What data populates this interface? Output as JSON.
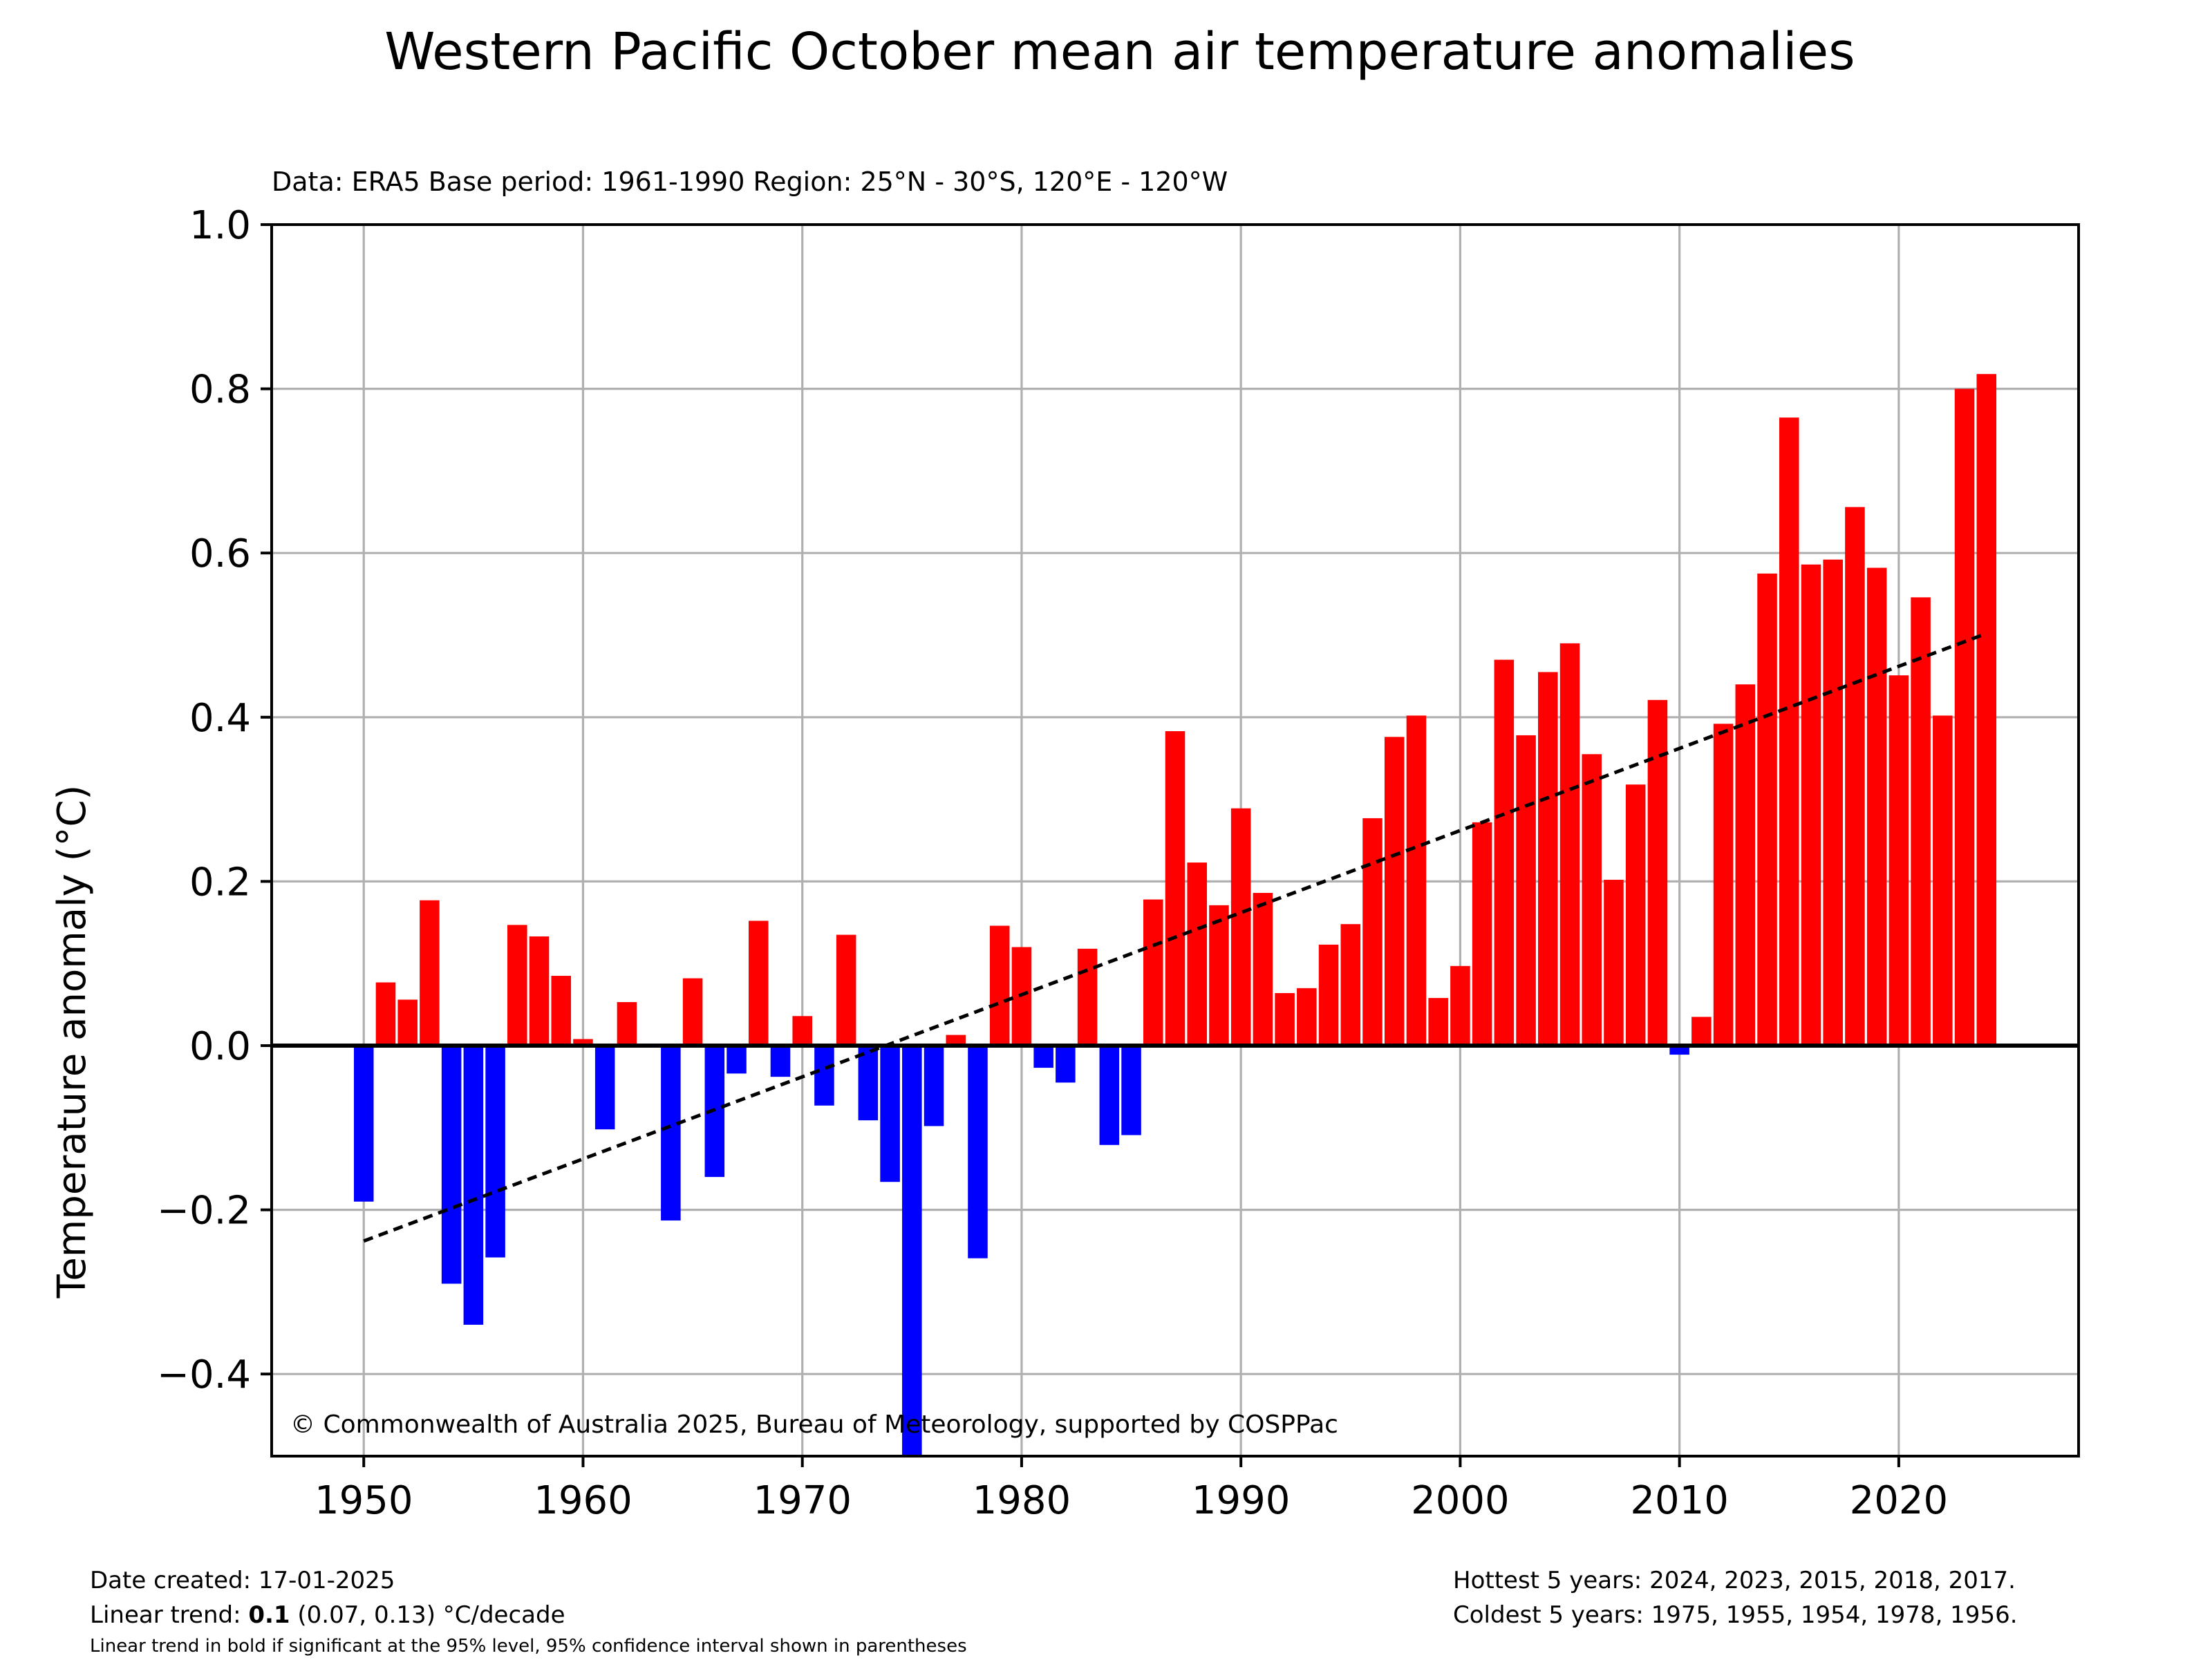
{
  "chart_data": {
    "type": "bar",
    "title": "Western Pacific October mean air temperature anomalies",
    "subtitle": "Data: ERA5  Base period: 1961-1990  Region: 25°N - 30°S, 120°E - 120°W",
    "xlabel": "",
    "ylabel": "Temperature anomaly (°C)",
    "xlim": [
      1945.8,
      2028.2
    ],
    "ylim": [
      -0.5,
      1.0
    ],
    "grid": true,
    "x_ticks": [
      1950,
      1960,
      1970,
      1980,
      1990,
      2000,
      2010,
      2020
    ],
    "y_ticks": [
      -0.4,
      -0.2,
      0.0,
      0.2,
      0.4,
      0.6,
      0.8,
      1.0
    ],
    "x_tick_labels": [
      "1950",
      "1960",
      "1970",
      "1980",
      "1990",
      "2000",
      "2010",
      "2020"
    ],
    "y_tick_labels": [
      "−0.4",
      "−0.2",
      "0.0",
      "0.2",
      "0.4",
      "0.6",
      "0.8",
      "1.0"
    ],
    "positive_color": "#ff0000",
    "negative_color": "#0000ff",
    "trend_color": "#000000",
    "years": [
      1950,
      1951,
      1952,
      1953,
      1954,
      1955,
      1956,
      1957,
      1958,
      1959,
      1960,
      1961,
      1962,
      1963,
      1964,
      1965,
      1966,
      1967,
      1968,
      1969,
      1970,
      1971,
      1972,
      1973,
      1974,
      1975,
      1976,
      1977,
      1978,
      1979,
      1980,
      1981,
      1982,
      1983,
      1984,
      1985,
      1986,
      1987,
      1988,
      1989,
      1990,
      1991,
      1992,
      1993,
      1994,
      1995,
      1996,
      1997,
      1998,
      1999,
      2000,
      2001,
      2002,
      2003,
      2004,
      2005,
      2006,
      2007,
      2008,
      2009,
      2010,
      2011,
      2012,
      2013,
      2014,
      2015,
      2016,
      2017,
      2018,
      2019,
      2020,
      2021,
      2022,
      2023,
      2024
    ],
    "values": [
      -0.19,
      0.077,
      0.056,
      0.177,
      -0.29,
      -0.34,
      -0.258,
      0.147,
      0.133,
      0.085,
      0.008,
      -0.102,
      0.053,
      0.0,
      -0.213,
      0.082,
      -0.16,
      -0.034,
      0.152,
      -0.038,
      0.036,
      -0.073,
      0.135,
      -0.091,
      -0.166,
      -0.5,
      -0.098,
      0.013,
      -0.259,
      0.146,
      0.12,
      -0.027,
      -0.045,
      0.118,
      -0.121,
      -0.109,
      0.178,
      0.383,
      0.223,
      0.171,
      0.289,
      0.186,
      0.064,
      0.07,
      0.123,
      0.148,
      0.277,
      0.376,
      0.402,
      0.058,
      0.097,
      0.272,
      0.47,
      0.378,
      0.455,
      0.49,
      0.355,
      0.202,
      0.318,
      0.421,
      -0.011,
      0.035,
      0.392,
      0.44,
      0.575,
      0.765,
      0.586,
      0.592,
      0.656,
      0.582,
      0.451,
      0.546,
      0.402,
      0.8,
      0.818
    ],
    "trend": {
      "x": [
        1950,
        2024
      ],
      "y": [
        -0.238,
        0.502
      ]
    },
    "annotation": "© Commonwealth of Australia 2025, Bureau of Meteorology, supported by COSPPac"
  },
  "footer": {
    "date_created": "Date created: 17-01-2025",
    "trend_prefix": "Linear trend: ",
    "trend_value": "0.1",
    "trend_suffix": " (0.07, 0.13) °C/decade",
    "note": "Linear trend in bold if significant at the 95% level, 95% confidence interval shown in parentheses",
    "hottest": "Hottest 5 years: 2024, 2023, 2015, 2018, 2017.",
    "coldest": "Coldest 5 years: 1975, 1955, 1954, 1978, 1956."
  }
}
